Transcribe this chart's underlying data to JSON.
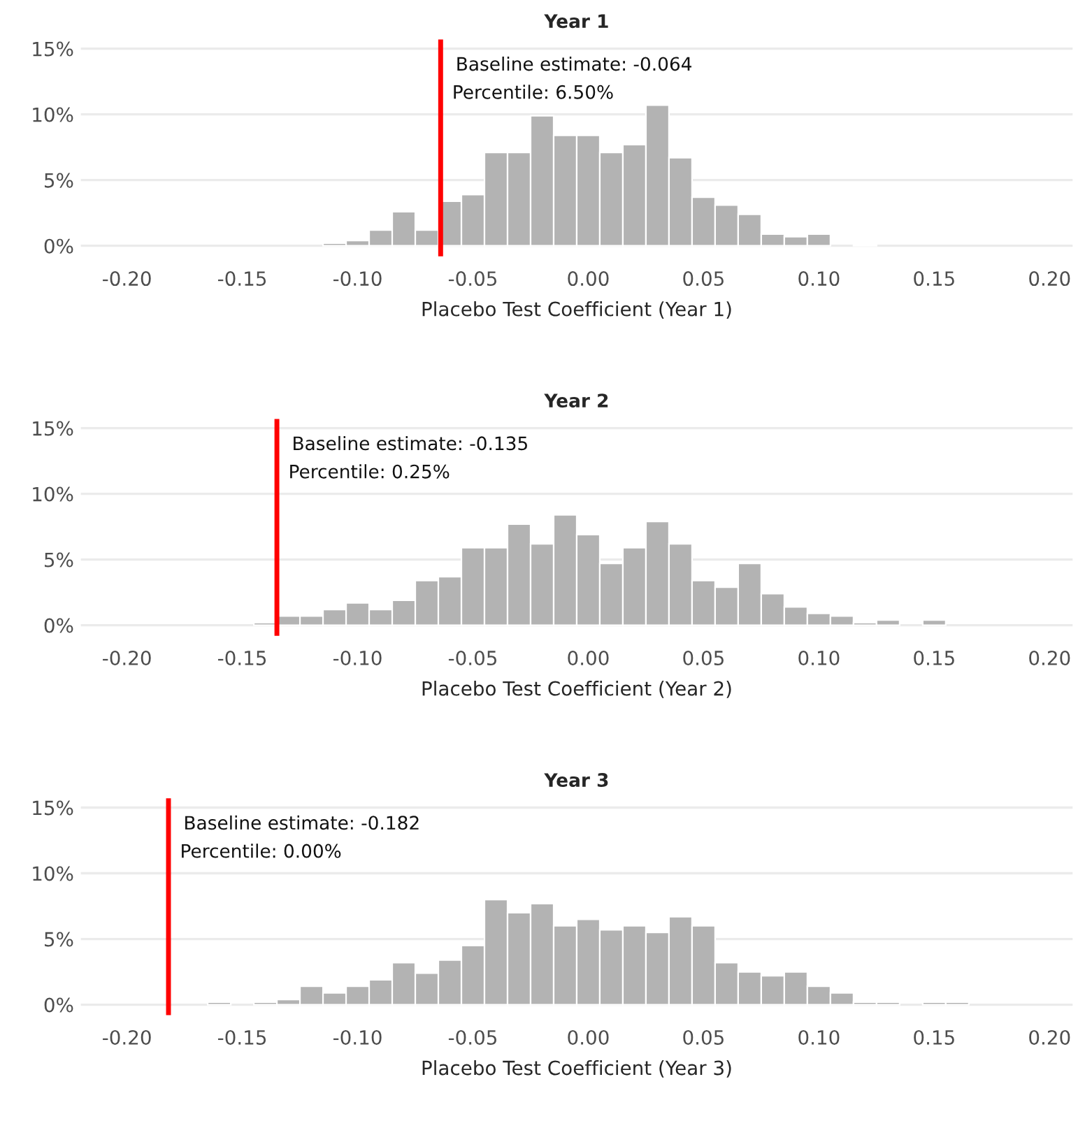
{
  "chart_data": [
    {
      "type": "histogram",
      "title": "Year 1",
      "xlabel": "Placebo Test Coefficient (Year 1)",
      "color": "#b3b3b3",
      "bins": [
        -0.165,
        -0.155,
        -0.145,
        -0.135,
        -0.125,
        -0.115,
        -0.105,
        -0.095,
        -0.085,
        -0.075,
        -0.065,
        -0.055,
        -0.045,
        -0.035,
        -0.025,
        -0.015,
        -0.005,
        0.005,
        0.015,
        0.025,
        0.035,
        0.045,
        0.055,
        0.065,
        0.075,
        0.085,
        0.095,
        0.105,
        0.115,
        0.125,
        0.135,
        0.145,
        0.155,
        0.165
      ],
      "values": [
        0,
        0,
        0,
        0,
        0,
        0.2,
        0.4,
        1.2,
        2.6,
        1.2,
        3.4,
        3.9,
        7.1,
        7.1,
        9.9,
        8.4,
        8.4,
        7.1,
        7.7,
        10.7,
        6.7,
        3.7,
        3.1,
        2.4,
        0.9,
        0.7,
        0.9,
        0,
        0.1,
        0,
        0,
        0,
        0
      ],
      "xlim": [
        -0.22,
        0.21
      ],
      "xticks": [
        {
          "value": -0.2,
          "label": "-0.20"
        },
        {
          "value": -0.15,
          "label": "-0.15"
        },
        {
          "value": -0.1,
          "label": "-0.10"
        },
        {
          "value": -0.05,
          "label": "-0.05"
        },
        {
          "value": 0,
          "label": "0.00"
        },
        {
          "value": 0.05,
          "label": "0.05"
        },
        {
          "value": 0.1,
          "label": "0.10"
        },
        {
          "value": 0.15,
          "label": "0.15"
        },
        {
          "value": 0.2,
          "label": "0.20"
        }
      ],
      "ylim": [
        -0.8,
        15.7
      ],
      "yticks": [
        {
          "value": 0,
          "label": "0%"
        },
        {
          "value": 5,
          "label": "5%"
        },
        {
          "value": 10,
          "label": "10%"
        },
        {
          "value": 15,
          "label": "15%"
        }
      ],
      "grid": "y",
      "ref_lines": [
        {
          "axis": "x",
          "value": -0.064,
          "color": "#ff0000"
        }
      ],
      "annotations": [
        "Baseline estimate: -0.064",
        "Percentile: 6.50%"
      ]
    },
    {
      "type": "histogram",
      "title": "Year 2",
      "xlabel": "Placebo Test Coefficient (Year 2)",
      "color": "#b3b3b3",
      "bins": [
        -0.165,
        -0.155,
        -0.145,
        -0.135,
        -0.125,
        -0.115,
        -0.105,
        -0.095,
        -0.085,
        -0.075,
        -0.065,
        -0.055,
        -0.045,
        -0.035,
        -0.025,
        -0.015,
        -0.005,
        0.005,
        0.015,
        0.025,
        0.035,
        0.045,
        0.055,
        0.065,
        0.075,
        0.085,
        0.095,
        0.105,
        0.115,
        0.125,
        0.135,
        0.145,
        0.155,
        0.165
      ],
      "values": [
        0,
        0,
        0.2,
        0.7,
        0.7,
        1.2,
        1.7,
        1.2,
        1.9,
        3.4,
        3.7,
        5.9,
        5.9,
        7.7,
        6.2,
        8.4,
        6.9,
        4.7,
        5.9,
        7.9,
        6.2,
        3.4,
        2.9,
        4.7,
        2.4,
        1.4,
        0.9,
        0.7,
        0.2,
        0.4,
        0,
        0.4,
        0
      ],
      "xlim": [
        -0.22,
        0.21
      ],
      "xticks": [
        {
          "value": -0.2,
          "label": "-0.20"
        },
        {
          "value": -0.15,
          "label": "-0.15"
        },
        {
          "value": -0.1,
          "label": "-0.10"
        },
        {
          "value": -0.05,
          "label": "-0.05"
        },
        {
          "value": 0,
          "label": "0.00"
        },
        {
          "value": 0.05,
          "label": "0.05"
        },
        {
          "value": 0.1,
          "label": "0.10"
        },
        {
          "value": 0.15,
          "label": "0.15"
        },
        {
          "value": 0.2,
          "label": "0.20"
        }
      ],
      "ylim": [
        -0.8,
        15.7
      ],
      "yticks": [
        {
          "value": 0,
          "label": "0%"
        },
        {
          "value": 5,
          "label": "5%"
        },
        {
          "value": 10,
          "label": "10%"
        },
        {
          "value": 15,
          "label": "15%"
        }
      ],
      "grid": "y",
      "ref_lines": [
        {
          "axis": "x",
          "value": -0.135,
          "color": "#ff0000"
        }
      ],
      "annotations": [
        "Baseline estimate: -0.135",
        "Percentile: 0.25%"
      ]
    },
    {
      "type": "histogram",
      "title": "Year 3",
      "xlabel": "Placebo Test Coefficient (Year 3)",
      "color": "#b3b3b3",
      "bins": [
        -0.165,
        -0.155,
        -0.145,
        -0.135,
        -0.125,
        -0.115,
        -0.105,
        -0.095,
        -0.085,
        -0.075,
        -0.065,
        -0.055,
        -0.045,
        -0.035,
        -0.025,
        -0.015,
        -0.005,
        0.005,
        0.015,
        0.025,
        0.035,
        0.045,
        0.055,
        0.065,
        0.075,
        0.085,
        0.095,
        0.105,
        0.115,
        0.125,
        0.135,
        0.145,
        0.155,
        0.165
      ],
      "values": [
        0.2,
        0,
        0.2,
        0.4,
        1.4,
        0.9,
        1.4,
        1.9,
        3.2,
        2.4,
        3.4,
        4.5,
        8.0,
        7.0,
        7.7,
        6.0,
        6.5,
        5.7,
        6.0,
        5.5,
        6.7,
        6.0,
        3.2,
        2.5,
        2.2,
        2.5,
        1.4,
        0.9,
        0.2,
        0.2,
        0,
        0.2,
        0.2
      ],
      "xlim": [
        -0.22,
        0.21
      ],
      "xticks": [
        {
          "value": -0.2,
          "label": "-0.20"
        },
        {
          "value": -0.15,
          "label": "-0.15"
        },
        {
          "value": -0.1,
          "label": "-0.10"
        },
        {
          "value": -0.05,
          "label": "-0.05"
        },
        {
          "value": 0,
          "label": "0.00"
        },
        {
          "value": 0.05,
          "label": "0.05"
        },
        {
          "value": 0.1,
          "label": "0.10"
        },
        {
          "value": 0.15,
          "label": "0.15"
        },
        {
          "value": 0.2,
          "label": "0.20"
        }
      ],
      "ylim": [
        -0.8,
        15.7
      ],
      "yticks": [
        {
          "value": 0,
          "label": "0%"
        },
        {
          "value": 5,
          "label": "5%"
        },
        {
          "value": 10,
          "label": "10%"
        },
        {
          "value": 15,
          "label": "15%"
        }
      ],
      "grid": "y",
      "ref_lines": [
        {
          "axis": "x",
          "value": -0.182,
          "color": "#ff0000"
        }
      ],
      "annotations": [
        "Baseline estimate: -0.182",
        "Percentile: 0.00%"
      ]
    }
  ]
}
